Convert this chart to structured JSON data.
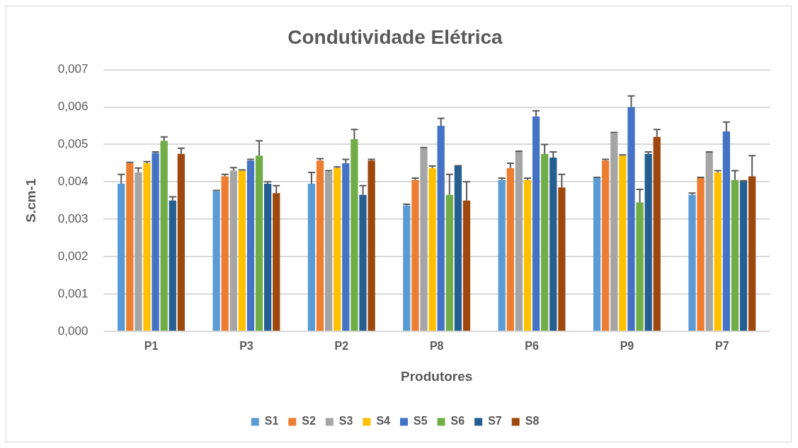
{
  "chart_data": {
    "type": "bar",
    "title": "Condutividade Elétrica",
    "xlabel": "Produtores",
    "ylabel": "S.cm-1",
    "categories": [
      "P1",
      "P3",
      "P2",
      "P8",
      "P6",
      "P9",
      "P7"
    ],
    "ylim": [
      0,
      0.007
    ],
    "yticks": [
      {
        "value": 0,
        "label": "0,000"
      },
      {
        "value": 0.001,
        "label": "0,001"
      },
      {
        "value": 0.002,
        "label": "0,002"
      },
      {
        "value": 0.003,
        "label": "0,003"
      },
      {
        "value": 0.004,
        "label": "0,004"
      },
      {
        "value": 0.005,
        "label": "0,005"
      },
      {
        "value": 0.006,
        "label": "0,006"
      },
      {
        "value": 0.007,
        "label": "0,007"
      }
    ],
    "grid": "y",
    "legend": "bottom",
    "series": [
      {
        "name": "S1",
        "color": "#5b9bd5",
        "values": [
          0.00395,
          0.00375,
          0.00395,
          0.00337,
          0.00405,
          0.0041,
          0.00365
        ],
        "errors": [
          [
            0.00395,
            0.0042
          ],
          [
            0.00375,
            0.00377
          ],
          [
            0.00395,
            0.00425
          ],
          [
            0.00337,
            0.0034
          ],
          [
            0.00405,
            0.0041
          ],
          [
            0.0041,
            0.00412
          ],
          [
            0.00365,
            0.0037
          ]
        ]
      },
      {
        "name": "S2",
        "color": "#ed7d31",
        "values": [
          0.0045,
          0.00415,
          0.00457,
          0.00405,
          0.00437,
          0.00457,
          0.0041
        ],
        "errors": [
          [
            0.0045,
            0.00452
          ],
          [
            0.00415,
            0.0042
          ],
          [
            0.00457,
            0.00462
          ],
          [
            0.00405,
            0.0041
          ],
          [
            0.00437,
            0.0045
          ],
          [
            0.00457,
            0.0046
          ],
          [
            0.0041,
            0.00412
          ]
        ]
      },
      {
        "name": "S3",
        "color": "#a5a5a5",
        "values": [
          0.00425,
          0.0043,
          0.00427,
          0.0049,
          0.0048,
          0.0053,
          0.00478
        ],
        "errors": [
          [
            0.00425,
            0.00437
          ],
          [
            0.0043,
            0.00438
          ],
          [
            0.00427,
            0.0043
          ],
          [
            0.0049,
            0.00492
          ],
          [
            0.0048,
            0.00482
          ],
          [
            0.0053,
            0.00532
          ],
          [
            0.00478,
            0.0048
          ]
        ]
      },
      {
        "name": "S4",
        "color": "#ffc000",
        "values": [
          0.0045,
          0.0043,
          0.00437,
          0.00437,
          0.00405,
          0.0047,
          0.00425
        ],
        "errors": [
          [
            0.0045,
            0.00454
          ],
          [
            0.0043,
            0.00432
          ],
          [
            0.00437,
            0.0044
          ],
          [
            0.00437,
            0.00442
          ],
          [
            0.00405,
            0.0041
          ],
          [
            0.0047,
            0.00472
          ],
          [
            0.00425,
            0.0043
          ]
        ]
      },
      {
        "name": "S5",
        "color": "#4472c4",
        "values": [
          0.00477,
          0.00457,
          0.0045,
          0.0055,
          0.00575,
          0.006,
          0.00535
        ],
        "errors": [
          [
            0.00477,
            0.0048
          ],
          [
            0.00457,
            0.0046
          ],
          [
            0.0045,
            0.0046
          ],
          [
            0.0055,
            0.0057
          ],
          [
            0.00575,
            0.0059
          ],
          [
            0.006,
            0.0063
          ],
          [
            0.00535,
            0.0056
          ]
        ]
      },
      {
        "name": "S6",
        "color": "#70ad47",
        "values": [
          0.0051,
          0.0047,
          0.00514,
          0.00365,
          0.00475,
          0.00345,
          0.00405
        ],
        "errors": [
          [
            0.0051,
            0.0052
          ],
          [
            0.0047,
            0.0051
          ],
          [
            0.00514,
            0.0054
          ],
          [
            0.00365,
            0.0042
          ],
          [
            0.00475,
            0.005
          ],
          [
            0.00345,
            0.0038
          ],
          [
            0.00405,
            0.0043
          ]
        ]
      },
      {
        "name": "S7",
        "color": "#255e91",
        "values": [
          0.0035,
          0.00395,
          0.00365,
          0.00442,
          0.00465,
          0.00475,
          0.00402
        ],
        "errors": [
          [
            0.0035,
            0.0036
          ],
          [
            0.00395,
            0.004
          ],
          [
            0.00365,
            0.0039
          ],
          [
            0.00442,
            0.00443
          ],
          [
            0.00465,
            0.0048
          ],
          [
            0.00475,
            0.0048
          ],
          [
            0.00402,
            0.00403
          ]
        ]
      },
      {
        "name": "S8",
        "color": "#9e480e",
        "values": [
          0.00475,
          0.0037,
          0.00457,
          0.0035,
          0.00385,
          0.0052,
          0.00415
        ],
        "errors": [
          [
            0.00475,
            0.0049
          ],
          [
            0.0037,
            0.0039
          ],
          [
            0.00457,
            0.0046
          ],
          [
            0.0035,
            0.004
          ],
          [
            0.00385,
            0.0042
          ],
          [
            0.0052,
            0.0054
          ],
          [
            0.00415,
            0.0047
          ]
        ]
      }
    ]
  }
}
